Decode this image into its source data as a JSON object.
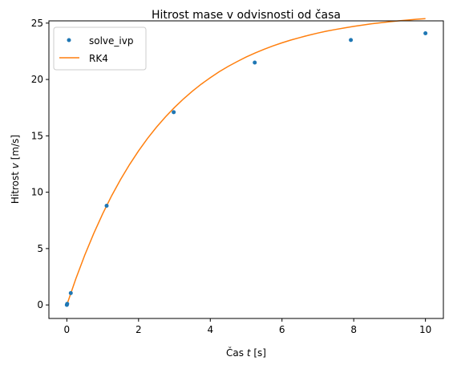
{
  "chart_data": {
    "type": "line",
    "title": "Hitrost mase v odvisnosti od časa",
    "xlabel": "Čas t [s]",
    "ylabel": "Hitrost v [m/s]",
    "xlim": [
      -0.5,
      10.5
    ],
    "ylim": [
      -1.2,
      25.2
    ],
    "xticks": [
      0,
      2,
      4,
      6,
      8,
      10
    ],
    "yticks": [
      0,
      5,
      10,
      15,
      20,
      25
    ],
    "grid": false,
    "legend_position": "top-left",
    "series": [
      {
        "name": "solve_ivp",
        "kind": "scatter",
        "color": "#1f77b4",
        "x": [
          0,
          0.01,
          0.11,
          1.11,
          2.98,
          5.24,
          7.92,
          10.0
        ],
        "y": [
          0.0,
          0.1,
          1.05,
          8.8,
          17.1,
          21.5,
          23.5,
          24.1
        ]
      },
      {
        "name": "RK4",
        "kind": "line",
        "color": "#ff7f0e",
        "x": [
          0,
          0.25,
          0.5,
          0.75,
          1.0,
          1.25,
          1.5,
          1.75,
          2.0,
          2.25,
          2.5,
          2.75,
          3.0,
          3.25,
          3.5,
          3.75,
          4.0,
          4.25,
          4.5,
          4.75,
          5.0,
          5.25,
          5.5,
          5.75,
          6.0,
          6.25,
          6.5,
          6.75,
          7.0,
          7.25,
          7.5,
          7.75,
          8.0,
          8.25,
          8.5,
          8.75,
          9.0,
          9.25,
          9.5,
          9.75,
          10.0
        ],
        "y": [
          0.0,
          2.31,
          4.42,
          6.34,
          8.09,
          9.69,
          11.14,
          12.46,
          13.67,
          14.77,
          15.77,
          16.68,
          17.51,
          18.27,
          18.96,
          19.59,
          20.16,
          20.69,
          21.16,
          21.59,
          21.99,
          22.35,
          22.68,
          22.98,
          23.25,
          23.5,
          23.72,
          23.93,
          24.12,
          24.29,
          24.44,
          24.58,
          24.71,
          24.83,
          24.94,
          25.03,
          25.12,
          25.2,
          25.27,
          25.34,
          25.4
        ]
      }
    ]
  }
}
